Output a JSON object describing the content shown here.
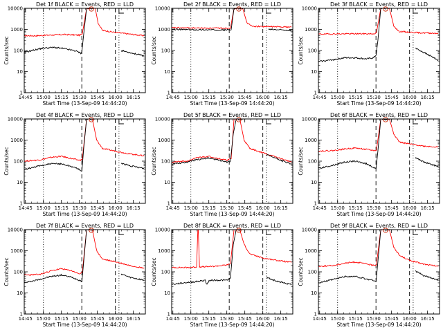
{
  "chart_data": {
    "type": "line",
    "yscale": "log",
    "ylim": [
      1,
      10000
    ],
    "yticks": [
      "1",
      "10",
      "100",
      "1000",
      "10000"
    ],
    "ylabel": "Counts/sec",
    "xlabel": "Start Time (13-Sep-09 14:44:20)",
    "xlim": [
      "14:44",
      "16:25"
    ],
    "xticks": [
      "14:45",
      "15:00",
      "15:15",
      "15:30",
      "15:45",
      "16:00",
      "16:15"
    ],
    "flare_marker_time": "15:40",
    "vlines": [
      {
        "time": "15:00",
        "style": "dotted"
      },
      {
        "time": "15:32",
        "style": "dashed"
      },
      {
        "time": "16:00",
        "style": "dashed"
      },
      {
        "time": "16:03",
        "style": "dotted"
      }
    ],
    "series_colors": {
      "events": "#000000",
      "lld": "#ff0000"
    },
    "panels": [
      {
        "title": "Det 1f BLACK = Events, RED = LLD",
        "events": [
          [
            14.73,
            80
          ],
          [
            14.87,
            105
          ],
          [
            15.0,
            130
          ],
          [
            15.15,
            140
          ],
          [
            15.3,
            120
          ],
          [
            15.45,
            95
          ],
          [
            15.52,
            75
          ],
          [
            15.535,
            90
          ],
          [
            15.56,
            600
          ],
          [
            15.6,
            10000
          ],
          [
            15.7,
            10000
          ],
          [
            15.72,
            10000
          ],
          [
            15.76,
            30000
          ],
          [
            15.83,
            10000
          ]
        ],
        "events_tail": [
          [
            16.08,
            100
          ],
          [
            16.2,
            80
          ],
          [
            16.4,
            55
          ]
        ],
        "lld": [
          [
            14.73,
            500
          ],
          [
            14.9,
            500
          ],
          [
            15.1,
            540
          ],
          [
            15.3,
            570
          ],
          [
            15.5,
            530
          ],
          [
            15.54,
            600
          ],
          [
            15.6,
            10000
          ],
          [
            15.72,
            10000
          ],
          [
            15.76,
            2000
          ],
          [
            15.82,
            900
          ],
          [
            16.0,
            720
          ],
          [
            16.2,
            600
          ],
          [
            16.4,
            500
          ]
        ]
      },
      {
        "title": "Det 2f BLACK = Events, RED = LLD",
        "events": [
          [
            14.73,
            1000
          ],
          [
            15.2,
            950
          ],
          [
            15.5,
            950
          ],
          [
            15.56,
            950
          ],
          [
            15.6,
            10000
          ],
          [
            15.72,
            10000
          ],
          [
            15.78,
            20000
          ]
        ],
        "events_tail": [
          [
            16.08,
            1000
          ],
          [
            16.4,
            900
          ]
        ],
        "lld": [
          [
            14.73,
            1200
          ],
          [
            15.2,
            1150
          ],
          [
            15.55,
            1150
          ],
          [
            15.6,
            10000
          ],
          [
            15.72,
            10000
          ],
          [
            15.78,
            2000
          ],
          [
            15.85,
            1400
          ],
          [
            16.1,
            1350
          ],
          [
            16.4,
            1300
          ]
        ]
      },
      {
        "title": "Det 3f BLACK = Events, RED = LLD",
        "events": [
          [
            14.73,
            30
          ],
          [
            14.9,
            35
          ],
          [
            15.1,
            45
          ],
          [
            15.25,
            45
          ],
          [
            15.4,
            40
          ],
          [
            15.5,
            45
          ],
          [
            15.535,
            60
          ],
          [
            15.56,
            300
          ],
          [
            15.6,
            10000
          ],
          [
            15.72,
            10000
          ],
          [
            15.78,
            30000
          ]
        ],
        "events_tail": [
          [
            16.08,
            130
          ],
          [
            16.2,
            80
          ],
          [
            16.4,
            35
          ]
        ],
        "lld": [
          [
            14.73,
            600
          ],
          [
            15.2,
            620
          ],
          [
            15.5,
            620
          ],
          [
            15.54,
            700
          ],
          [
            15.6,
            10000
          ],
          [
            15.72,
            10000
          ],
          [
            15.78,
            1500
          ],
          [
            15.85,
            800
          ],
          [
            16.1,
            700
          ],
          [
            16.4,
            650
          ]
        ]
      },
      {
        "title": "Det 4f BLACK = Events, RED = LLD",
        "events": [
          [
            14.73,
            40
          ],
          [
            14.9,
            55
          ],
          [
            15.1,
            75
          ],
          [
            15.25,
            75
          ],
          [
            15.4,
            55
          ],
          [
            15.5,
            40
          ],
          [
            15.535,
            35
          ],
          [
            15.56,
            400
          ],
          [
            15.6,
            10000
          ],
          [
            15.72,
            10000
          ],
          [
            15.78,
            30000
          ]
        ],
        "events_tail": [
          [
            16.08,
            80
          ],
          [
            16.2,
            60
          ],
          [
            16.4,
            45
          ]
        ],
        "lld": [
          [
            14.73,
            100
          ],
          [
            14.95,
            115
          ],
          [
            15.1,
            150
          ],
          [
            15.25,
            170
          ],
          [
            15.4,
            130
          ],
          [
            15.5,
            110
          ],
          [
            15.54,
            120
          ],
          [
            15.6,
            10000
          ],
          [
            15.68,
            10000
          ],
          [
            15.74,
            1000
          ],
          [
            15.82,
            400
          ],
          [
            16.0,
            300
          ],
          [
            16.2,
            220
          ],
          [
            16.4,
            180
          ]
        ]
      },
      {
        "title": "Det 5f BLACK = Events, RED = LLD",
        "events": [
          [
            14.73,
            75
          ],
          [
            14.9,
            85
          ],
          [
            15.1,
            120
          ],
          [
            15.25,
            140
          ],
          [
            15.4,
            110
          ],
          [
            15.5,
            90
          ],
          [
            15.55,
            100
          ],
          [
            15.59,
            2000
          ],
          [
            15.63,
            10000
          ],
          [
            15.72,
            10000
          ],
          [
            15.78,
            30000
          ]
        ],
        "events_tail": [
          [
            16.05,
            200
          ],
          [
            16.2,
            130
          ],
          [
            16.4,
            70
          ]
        ],
        "lld": [
          [
            14.73,
            90
          ],
          [
            14.95,
            100
          ],
          [
            15.1,
            150
          ],
          [
            15.25,
            170
          ],
          [
            15.4,
            130
          ],
          [
            15.5,
            110
          ],
          [
            15.56,
            130
          ],
          [
            15.6,
            10000
          ],
          [
            15.68,
            10000
          ],
          [
            15.74,
            1000
          ],
          [
            15.82,
            400
          ],
          [
            16.0,
            250
          ],
          [
            16.2,
            150
          ],
          [
            16.4,
            90
          ]
        ]
      },
      {
        "title": "Det 6f BLACK = Events, RED = LLD",
        "events": [
          [
            14.73,
            45
          ],
          [
            14.9,
            60
          ],
          [
            15.1,
            90
          ],
          [
            15.25,
            100
          ],
          [
            15.4,
            75
          ],
          [
            15.5,
            50
          ],
          [
            15.535,
            45
          ],
          [
            15.56,
            300
          ],
          [
            15.6,
            10000
          ],
          [
            15.72,
            10000
          ],
          [
            15.78,
            30000
          ]
        ],
        "events_tail": [
          [
            16.08,
            150
          ],
          [
            16.2,
            90
          ],
          [
            16.4,
            55
          ]
        ],
        "lld": [
          [
            14.73,
            300
          ],
          [
            14.95,
            320
          ],
          [
            15.1,
            380
          ],
          [
            15.25,
            420
          ],
          [
            15.4,
            360
          ],
          [
            15.5,
            320
          ],
          [
            15.54,
            330
          ],
          [
            15.6,
            10000
          ],
          [
            15.72,
            10000
          ],
          [
            15.78,
            2000
          ],
          [
            15.86,
            800
          ],
          [
            16.0,
            650
          ],
          [
            16.2,
            520
          ],
          [
            16.4,
            460
          ]
        ]
      },
      {
        "title": "Det 7f BLACK = Events, RED = LLD",
        "events": [
          [
            14.73,
            30
          ],
          [
            14.9,
            40
          ],
          [
            15.1,
            60
          ],
          [
            15.25,
            70
          ],
          [
            15.4,
            55
          ],
          [
            15.5,
            40
          ],
          [
            15.535,
            35
          ],
          [
            15.56,
            300
          ],
          [
            15.6,
            10000
          ],
          [
            15.72,
            10000
          ],
          [
            15.78,
            30000
          ]
        ],
        "events_tail": [
          [
            16.08,
            80
          ],
          [
            16.2,
            55
          ],
          [
            16.4,
            40
          ]
        ],
        "lld": [
          [
            14.73,
            70
          ],
          [
            14.95,
            75
          ],
          [
            15.1,
            110
          ],
          [
            15.25,
            140
          ],
          [
            15.4,
            110
          ],
          [
            15.5,
            80
          ],
          [
            15.54,
            90
          ],
          [
            15.6,
            10000
          ],
          [
            15.68,
            10000
          ],
          [
            15.74,
            1000
          ],
          [
            15.82,
            400
          ],
          [
            16.0,
            300
          ],
          [
            16.2,
            200
          ],
          [
            16.4,
            150
          ]
        ]
      },
      {
        "title": "Det 8f BLACK = Events, RED = LLD",
        "events": [
          [
            14.73,
            25
          ],
          [
            14.9,
            30
          ],
          [
            15.1,
            35
          ],
          [
            15.2,
            40
          ],
          [
            15.22,
            25
          ],
          [
            15.26,
            40
          ],
          [
            15.4,
            40
          ],
          [
            15.5,
            40
          ],
          [
            15.55,
            50
          ],
          [
            15.59,
            2000
          ],
          [
            15.63,
            10000
          ],
          [
            15.72,
            10000
          ],
          [
            15.78,
            30000
          ]
        ],
        "events_tail": [
          [
            16.05,
            55
          ],
          [
            16.2,
            35
          ],
          [
            16.4,
            25
          ]
        ],
        "lld": [
          [
            14.73,
            160
          ],
          [
            14.95,
            160
          ],
          [
            15.08,
            170
          ],
          [
            15.1,
            20000
          ],
          [
            15.12,
            170
          ],
          [
            15.3,
            180
          ],
          [
            15.5,
            210
          ],
          [
            15.55,
            240
          ],
          [
            15.6,
            10000
          ],
          [
            15.68,
            10000
          ],
          [
            15.74,
            2000
          ],
          [
            15.82,
            700
          ],
          [
            16.0,
            450
          ],
          [
            16.2,
            350
          ],
          [
            16.4,
            280
          ]
        ]
      },
      {
        "title": "Det 9f BLACK = Events, RED = LLD",
        "events": [
          [
            14.73,
            30
          ],
          [
            14.9,
            40
          ],
          [
            15.1,
            60
          ],
          [
            15.25,
            60
          ],
          [
            15.4,
            45
          ],
          [
            15.5,
            40
          ],
          [
            15.535,
            35
          ],
          [
            15.56,
            300
          ],
          [
            15.6,
            10000
          ],
          [
            15.72,
            10000
          ],
          [
            15.78,
            30000
          ]
        ],
        "events_tail": [
          [
            16.08,
            110
          ],
          [
            16.2,
            65
          ],
          [
            16.4,
            40
          ]
        ],
        "lld": [
          [
            14.73,
            180
          ],
          [
            14.95,
            200
          ],
          [
            15.1,
            260
          ],
          [
            15.25,
            290
          ],
          [
            15.4,
            240
          ],
          [
            15.5,
            200
          ],
          [
            15.54,
            220
          ],
          [
            15.6,
            10000
          ],
          [
            15.72,
            10000
          ],
          [
            15.78,
            1500
          ],
          [
            15.86,
            600
          ],
          [
            16.0,
            350
          ],
          [
            16.2,
            230
          ],
          [
            16.4,
            180
          ]
        ]
      }
    ]
  }
}
